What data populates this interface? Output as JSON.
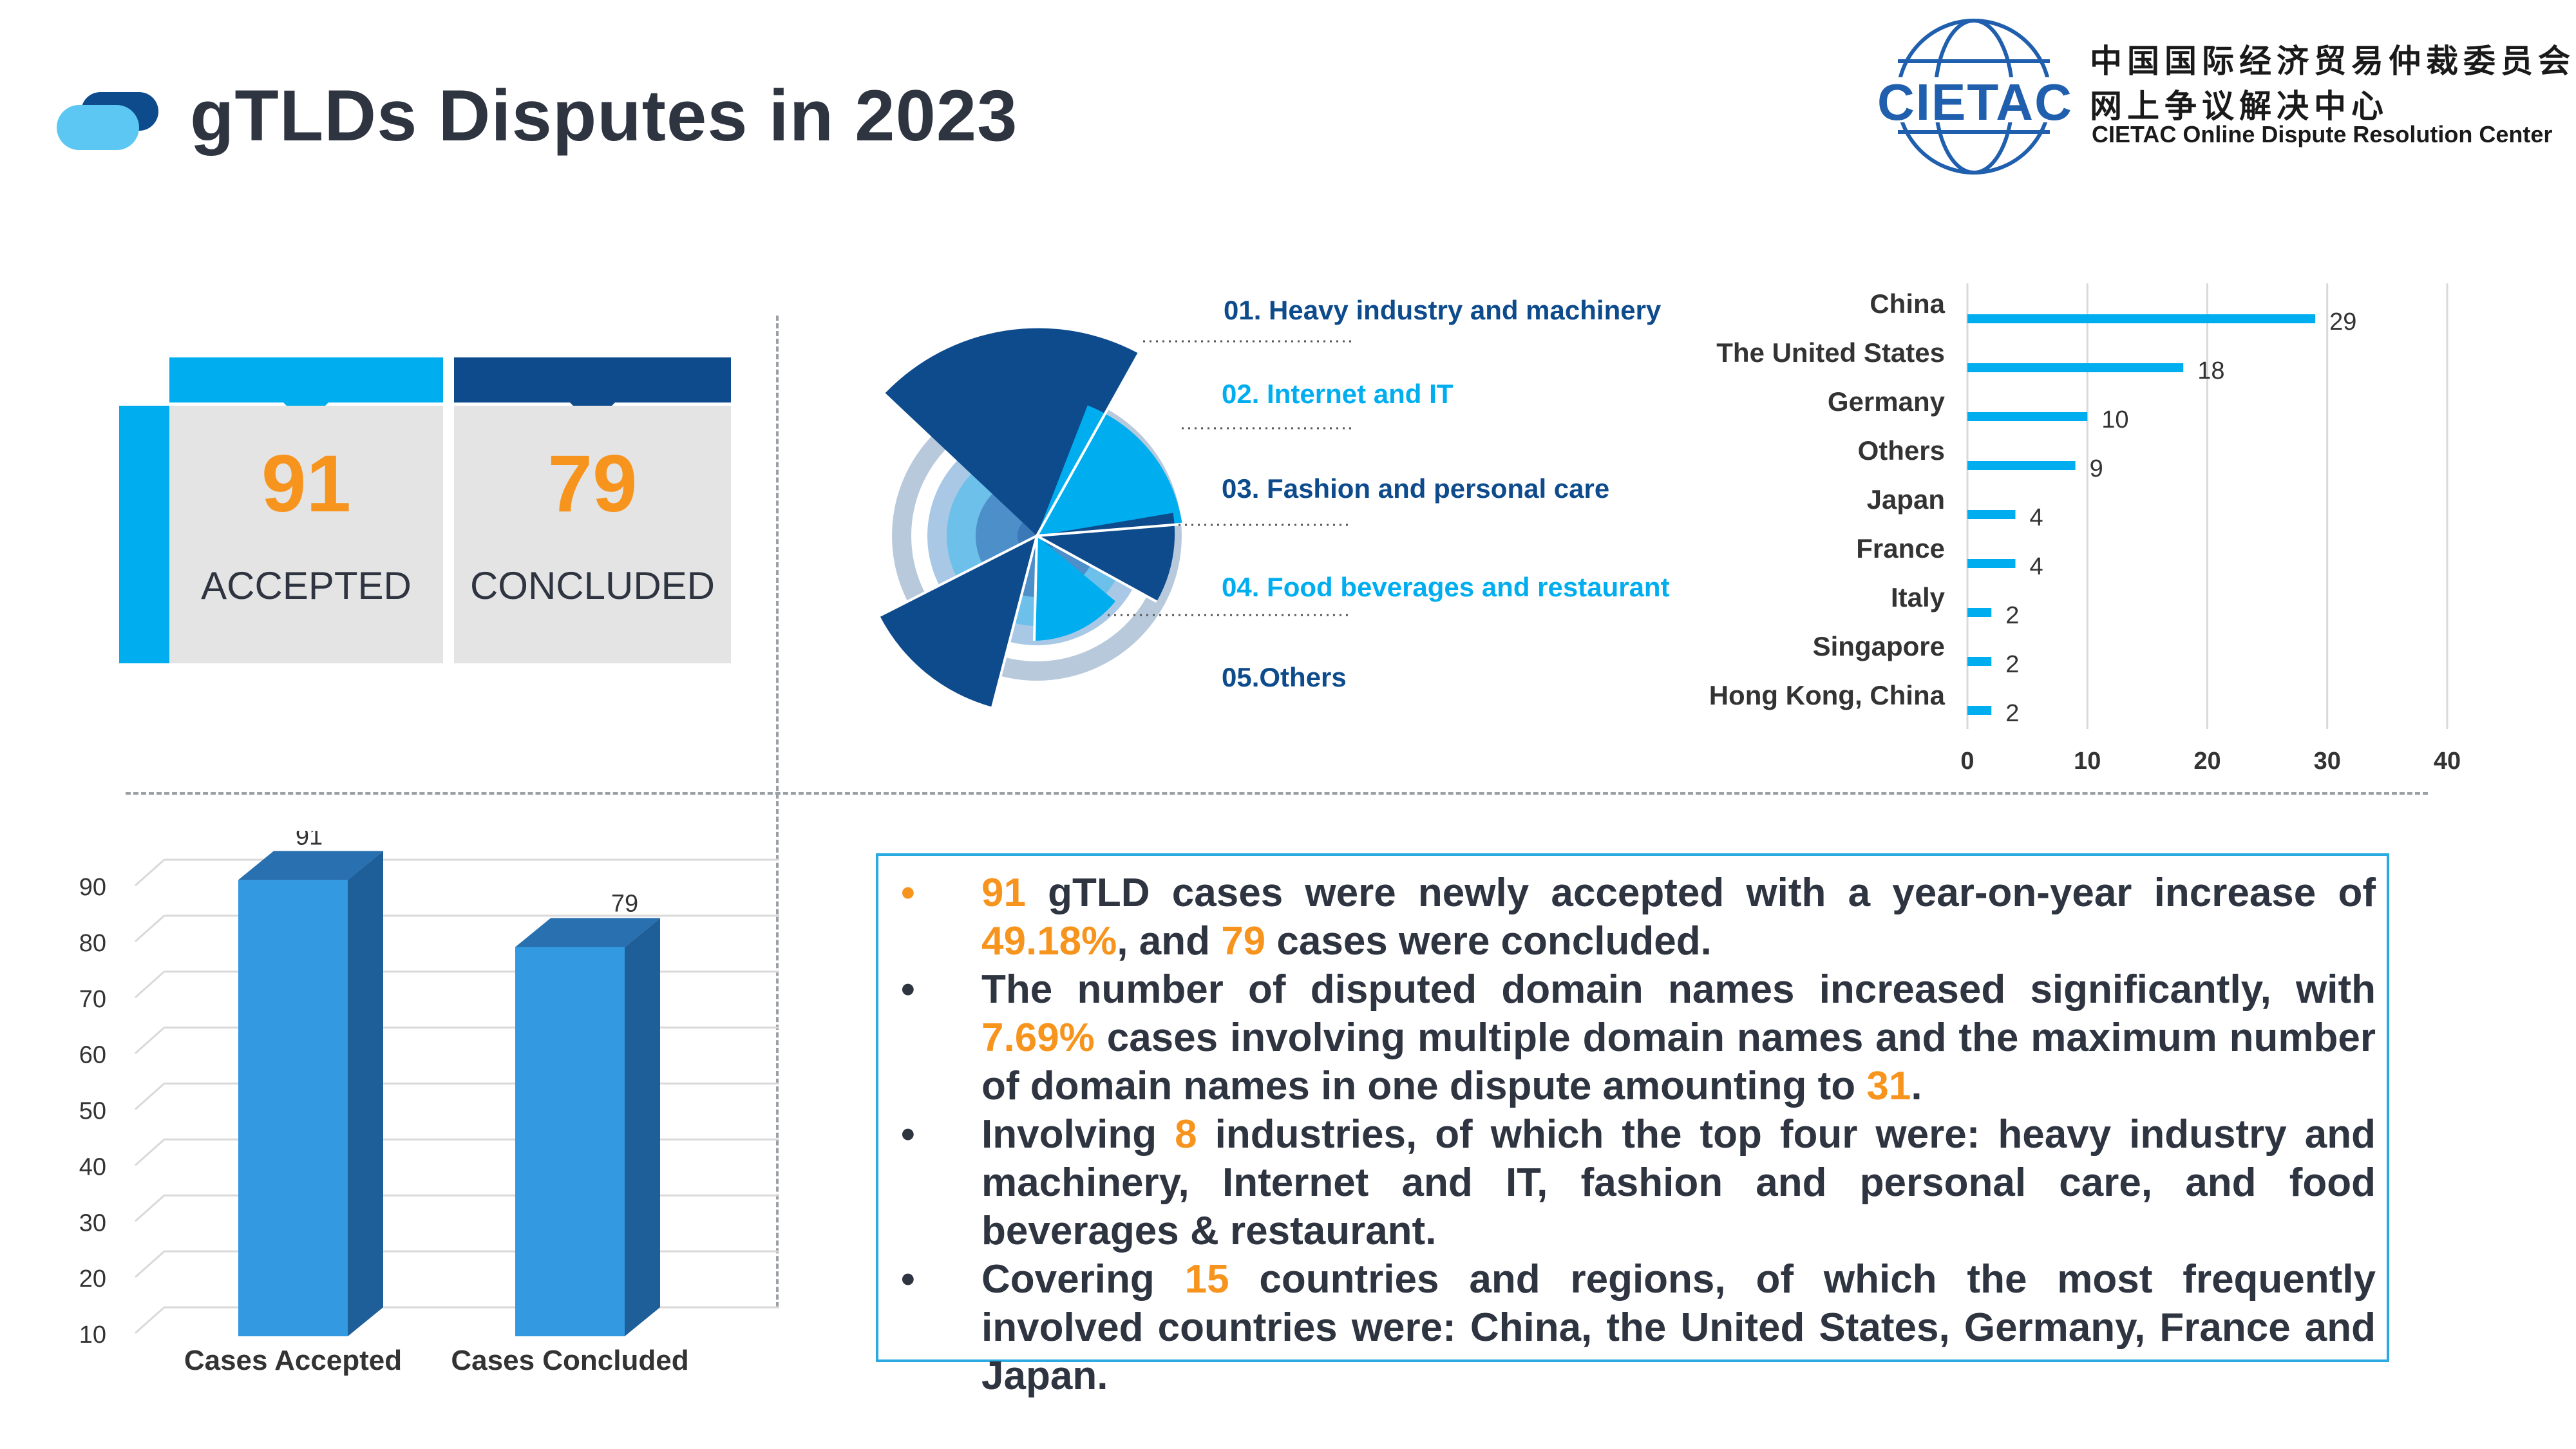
{
  "header": {
    "title": "gTLDs Disputes in 2023",
    "logo_text": "CIETAC",
    "org_cn_line1": "中国国际经济贸易仲裁委员会",
    "org_cn_line2": "网上争议解决中心",
    "org_en": "CIETAC Online Dispute Resolution Center"
  },
  "stats": {
    "accepted_value": "91",
    "accepted_label": "ACCEPTED",
    "concluded_value": "79",
    "concluded_label": "CONCLUDED"
  },
  "colors": {
    "accent_light": "#00aeef",
    "accent_dark": "#0d4b8c",
    "highlight": "#f7941d",
    "bar3d": "#3399e0"
  },
  "industries": [
    {
      "label": "01. Heavy industry and machinery",
      "color": "#0d4b8c"
    },
    {
      "label": "02. Internet and IT",
      "color": "#00aeef"
    },
    {
      "label": "03. Fashion and personal care",
      "color": "#0d4b8c"
    },
    {
      "label": "04. Food beverages and restaurant",
      "color": "#00aeef"
    },
    {
      "label": "05.Others",
      "color": "#0d4b8c"
    }
  ],
  "summary": {
    "b1": [
      "91",
      " gTLD cases were newly accepted with a year-on-year increase of ",
      "49.18%",
      ", and ",
      "79",
      " cases were concluded."
    ],
    "b2": [
      "The number of disputed domain names increased significantly, with ",
      "7.69%",
      " cases involving multiple domain names and the maximum number of domain names in one dispute amounting to ",
      "31",
      "."
    ],
    "b3": [
      "Involving ",
      "8",
      " industries, of which the top four were: heavy industry and machinery, Internet and IT, fashion and personal care, and food beverages & restaurant."
    ],
    "b4": [
      "Covering ",
      "15",
      " countries and regions, of which the most frequently involved countries were: China, the United States, Germany, France and Japan."
    ]
  },
  "chart_data": [
    {
      "type": "bar",
      "orientation": "horizontal",
      "categories": [
        "China",
        "The United States",
        "Germany",
        "Others",
        "Japan",
        "France",
        "Italy",
        "Singapore",
        "Hong Kong, China"
      ],
      "values": [
        29,
        18,
        10,
        9,
        4,
        4,
        2,
        2,
        2
      ],
      "xlim": [
        0,
        40
      ],
      "xticks": [
        0,
        10,
        20,
        30,
        40
      ],
      "grid": true,
      "color": "#00aeef"
    },
    {
      "type": "bar",
      "style": "3d",
      "categories": [
        "Cases Accepted",
        "Cases Concluded"
      ],
      "values": [
        91,
        79
      ],
      "ylim": [
        10,
        90
      ],
      "yticks": [
        10,
        20,
        30,
        40,
        50,
        60,
        70,
        80,
        90
      ],
      "grid": true,
      "color": "#3399e0"
    }
  ]
}
